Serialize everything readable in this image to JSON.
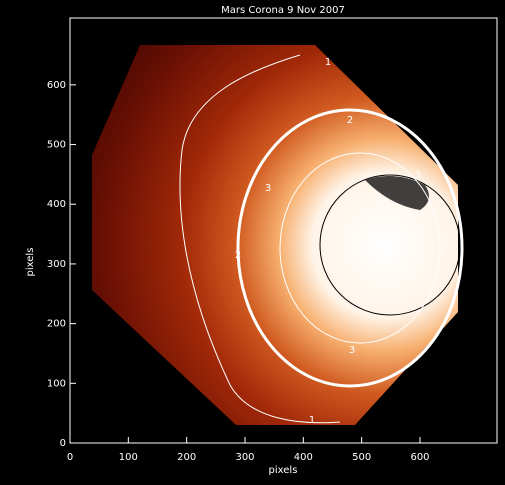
{
  "chart_data": {
    "type": "image",
    "title": "Mars Corona  9 Nov 2007",
    "xlabel": "pixels",
    "ylabel": "pixels",
    "xlim": [
      0,
      732
    ],
    "ylim": [
      0,
      712
    ],
    "xticks": [
      0,
      100,
      200,
      300,
      400,
      500,
      600
    ],
    "yticks": [
      0,
      100,
      200,
      300,
      400,
      500,
      600
    ],
    "contour_levels": [
      1,
      2,
      3
    ]
  }
}
